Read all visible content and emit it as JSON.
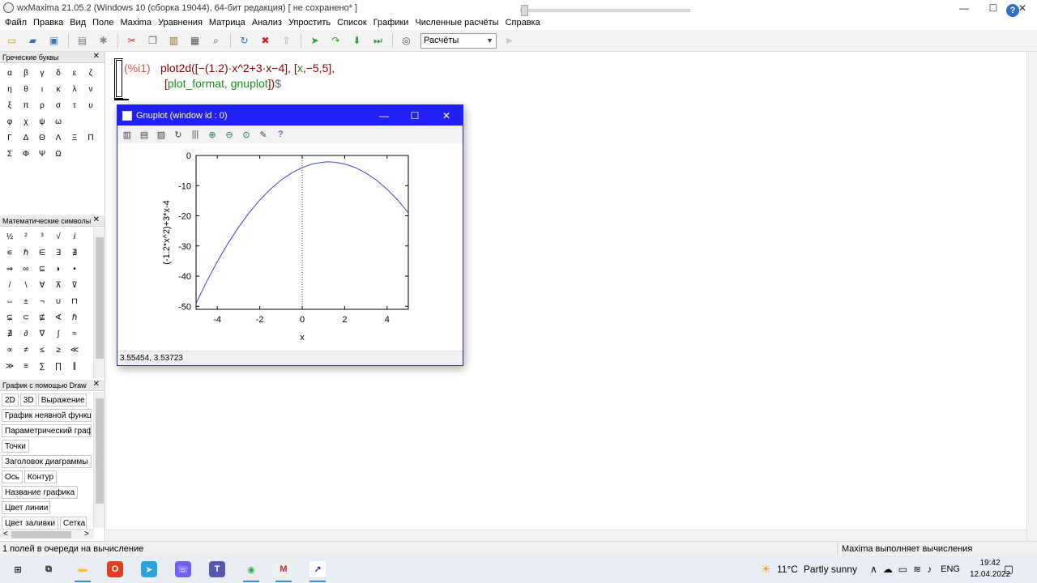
{
  "window": {
    "title": "wxMaxima 21.05.2 (Windows 10 (сборка 19044), 64-бит редакция) [ не сохранено* ]",
    "controls": {
      "minimize": "—",
      "maximize": "☐",
      "close": "✕"
    }
  },
  "menu": [
    "Файл",
    "Правка",
    "Вид",
    "Поле",
    "Maxima",
    "Уравнения",
    "Матрица",
    "Анализ",
    "Упростить",
    "Список",
    "Графики",
    "Численные расчёты",
    "Справка"
  ],
  "toolbar": {
    "icons": [
      {
        "name": "new",
        "glyph": "▭",
        "color": "#c9a400"
      },
      {
        "name": "open",
        "glyph": "▰",
        "color": "#3a6fb0"
      },
      {
        "name": "save",
        "glyph": "▣",
        "color": "#3a6fb0"
      },
      {
        "name": "print",
        "glyph": "▤",
        "color": "#777777"
      },
      {
        "name": "settings",
        "glyph": "✱",
        "color": "#888888"
      },
      {
        "name": "cut",
        "glyph": "✂",
        "color": "#c03030"
      },
      {
        "name": "copy",
        "glyph": "❐",
        "color": "#666666"
      },
      {
        "name": "paste",
        "glyph": "▥",
        "color": "#8a6a2a"
      },
      {
        "name": "select-all",
        "glyph": "▦",
        "color": "#555555"
      },
      {
        "name": "find",
        "glyph": "⌕",
        "color": "#444444"
      },
      {
        "name": "restart",
        "glyph": "↻",
        "color": "#2a6fd0"
      },
      {
        "name": "stop",
        "glyph": "✖",
        "color": "#d02020"
      },
      {
        "name": "up",
        "glyph": "⇧",
        "color": "#aaaaaa"
      },
      {
        "name": "run",
        "glyph": "➤",
        "color": "#2f9a2f"
      },
      {
        "name": "step",
        "glyph": "↷",
        "color": "#2f9a2f"
      },
      {
        "name": "download",
        "glyph": "⬇",
        "color": "#2f9a2f"
      },
      {
        "name": "skip",
        "glyph": "⏭",
        "color": "#2f9a2f"
      },
      {
        "name": "hide",
        "glyph": "◎",
        "color": "#555555"
      }
    ],
    "mode_select": "Расчёты",
    "help": "?"
  },
  "greek_panel": {
    "title": "Греческие буквы",
    "close": "✕",
    "letters": [
      "α",
      "β",
      "γ",
      "δ",
      "ε",
      "ζ",
      "η",
      "θ",
      "ι",
      "κ",
      "λ",
      "ν",
      "ξ",
      "π",
      "ρ",
      "σ",
      "τ",
      "υ",
      "φ",
      "χ",
      "ψ",
      "ω",
      "",
      "",
      "Γ",
      "Δ",
      "Θ",
      "Λ",
      "Ξ",
      "Π",
      "Σ",
      "Φ",
      "Ψ",
      "Ω"
    ]
  },
  "math_panel": {
    "title": "Математические символы",
    "close": "✕",
    "symbols": [
      "½",
      "²",
      "³",
      "√",
      "ⅈ",
      "",
      "∊",
      "ℏ",
      "∈",
      "∃",
      "∄",
      "",
      "⇒",
      "∞",
      "⊆",
      "◗",
      "•",
      "",
      "/",
      "\\",
      "∀",
      "⊼",
      "⊽",
      "",
      "⇔",
      "±",
      "¬",
      "∪",
      "⊓",
      "",
      "⊊",
      "⊂",
      "⊈",
      "∢",
      "ℏ",
      "",
      "∄",
      "∂",
      "∇",
      "∫",
      "≈",
      "",
      "∝",
      "≠",
      "≤",
      "≥",
      "≪",
      "",
      "≫",
      "≡",
      "∑",
      "∏",
      "∥",
      ""
    ]
  },
  "draw_panel": {
    "title": "График с помощью Draw",
    "close": "✕",
    "buttons": [
      "2D",
      "3D",
      "Выражение",
      "График неявной функции",
      "Параметрический график",
      "Точки",
      "Заголовок диаграммы",
      "Ось",
      "Контур",
      "Название графика",
      "Цвет линии",
      "Цвет заливки",
      "Сетка"
    ],
    "scroll_left": "<",
    "scroll_right": ">"
  },
  "worksheet": {
    "label": "(%i1)",
    "line1_prefix": "plot2d([−(1.2)·x^2+3·x−4], [",
    "line1_green": "x",
    "line1_rest": ",−5,5],",
    "line2_open": "[",
    "line2_green": "plot_format, gnuplot",
    "line2_close": "])",
    "line2_end": "$"
  },
  "status": {
    "left": "1 полей в очереди на вычисление",
    "right": "Maxima выполняет вычисления"
  },
  "taskbar": {
    "icons": [
      {
        "name": "start",
        "glyph": "⊞",
        "color": "#1a1a1a",
        "bg": "transparent"
      },
      {
        "name": "task-view",
        "glyph": "⧉",
        "color": "#1a1a1a",
        "bg": "transparent"
      },
      {
        "name": "explorer",
        "glyph": "▬",
        "color": "#f0c030",
        "bg": "transparent"
      },
      {
        "name": "office",
        "glyph": "O",
        "color": "#ffffff",
        "bg": "#e0401e"
      },
      {
        "name": "telegram",
        "glyph": "➤",
        "color": "#ffffff",
        "bg": "#2aa3e0"
      },
      {
        "name": "viber",
        "glyph": "☏",
        "color": "#ffffff",
        "bg": "#7360f2"
      },
      {
        "name": "teams",
        "glyph": "T",
        "color": "#ffffff",
        "bg": "#5558af"
      },
      {
        "name": "chrome",
        "glyph": "◉",
        "color": "#34a853",
        "bg": "transparent"
      },
      {
        "name": "maxima",
        "glyph": "M",
        "color": "#aa3333",
        "bg": "#eeeeee"
      },
      {
        "name": "gnuplot",
        "glyph": "↗",
        "color": "#2020c0",
        "bg": "#ffffff"
      }
    ],
    "weather_temp": "11°C",
    "weather_desc": "Partly sunny",
    "lang": "ENG",
    "time": "19:42",
    "date": "12.04.2022"
  },
  "gnuplot": {
    "title": "Gnuplot (window id : 0)",
    "status": "3.55454,  3.53723",
    "toolbar_icons": [
      "▥",
      "▤",
      "▧",
      "↻",
      "|||",
      "⊕",
      "⊖",
      "⊙",
      "✎",
      "?"
    ]
  },
  "chart_data": {
    "type": "line",
    "function": "(-1.2*x^2)+3*x-4",
    "x": [
      -5,
      -4.5,
      -4,
      -3.5,
      -3,
      -2.5,
      -2,
      -1.5,
      -1,
      -0.5,
      0,
      0.5,
      1,
      1.25,
      1.5,
      2,
      2.5,
      3,
      3.5,
      4,
      4.5,
      5
    ],
    "y": [
      -49,
      -41.8,
      -35.2,
      -29.2,
      -23.8,
      -19,
      -14.8,
      -11.2,
      -8.2,
      -5.8,
      -4,
      -2.8,
      -2.2,
      -2.125,
      -2.2,
      -2.8,
      -4,
      -5.8,
      -8.2,
      -11.2,
      -14.8,
      -19
    ],
    "xlabel": "x",
    "ylabel": "(-1.2*x^2)+3*x-4",
    "xlim": [
      -5,
      5
    ],
    "ylim": [
      -51,
      0
    ],
    "xticks": [
      -4,
      -2,
      0,
      2,
      4
    ],
    "yticks": [
      0,
      -10,
      -20,
      -30,
      -40,
      -50
    ],
    "line_color": "#4040d0",
    "zero_axis": true
  }
}
